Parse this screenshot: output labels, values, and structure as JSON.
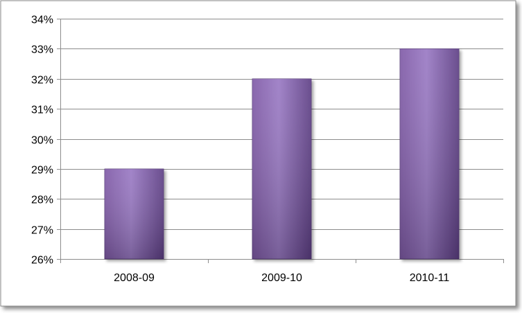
{
  "chart_data": {
    "type": "bar",
    "title": "",
    "xlabel": "",
    "ylabel": "",
    "categories": [
      "2008-09",
      "2009-10",
      "2010-11"
    ],
    "values": [
      29,
      32,
      33
    ],
    "unit": "%",
    "ylim": [
      26,
      34
    ],
    "ytick_step": 1,
    "yticks": [
      "26%",
      "27%",
      "28%",
      "29%",
      "30%",
      "31%",
      "32%",
      "33%",
      "34%"
    ],
    "grid": true,
    "legend": "none",
    "bar_color": "#7f5aa6",
    "bar_color_light": "#9a7ac4",
    "bar_color_dark": "#5e3f85"
  }
}
